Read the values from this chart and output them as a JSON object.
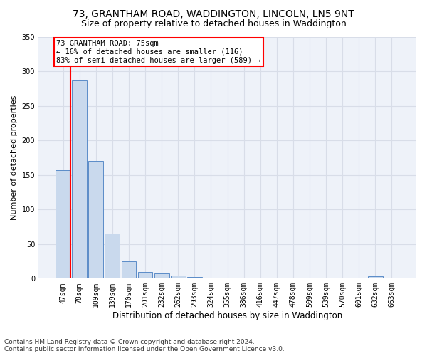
{
  "title1": "73, GRANTHAM ROAD, WADDINGTON, LINCOLN, LN5 9NT",
  "title2": "Size of property relative to detached houses in Waddington",
  "xlabel": "Distribution of detached houses by size in Waddington",
  "ylabel": "Number of detached properties",
  "categories": [
    "47sqm",
    "78sqm",
    "109sqm",
    "139sqm",
    "170sqm",
    "201sqm",
    "232sqm",
    "262sqm",
    "293sqm",
    "324sqm",
    "355sqm",
    "386sqm",
    "416sqm",
    "447sqm",
    "478sqm",
    "509sqm",
    "539sqm",
    "570sqm",
    "601sqm",
    "632sqm",
    "663sqm"
  ],
  "values": [
    157,
    287,
    170,
    65,
    25,
    10,
    8,
    4,
    2,
    0,
    0,
    0,
    0,
    0,
    0,
    0,
    0,
    0,
    0,
    3,
    0
  ],
  "bar_color": "#c9d9ed",
  "bar_edge_color": "#5b8cc8",
  "vline_color": "red",
  "vline_x": 0.08,
  "annotation_line1": "73 GRANTHAM ROAD: 75sqm",
  "annotation_line2": "← 16% of detached houses are smaller (116)",
  "annotation_line3": "83% of semi-detached houses are larger (589) →",
  "annotation_box_color": "white",
  "annotation_box_edge_color": "red",
  "ylim": [
    0,
    350
  ],
  "yticks": [
    0,
    50,
    100,
    150,
    200,
    250,
    300,
    350
  ],
  "footnote": "Contains HM Land Registry data © Crown copyright and database right 2024.\nContains public sector information licensed under the Open Government Licence v3.0.",
  "background_color": "#eef2f9",
  "grid_color": "#d8dde8",
  "title1_fontsize": 10,
  "title2_fontsize": 9,
  "xlabel_fontsize": 8.5,
  "ylabel_fontsize": 8,
  "tick_fontsize": 7,
  "annotation_fontsize": 7.5,
  "footnote_fontsize": 6.5
}
